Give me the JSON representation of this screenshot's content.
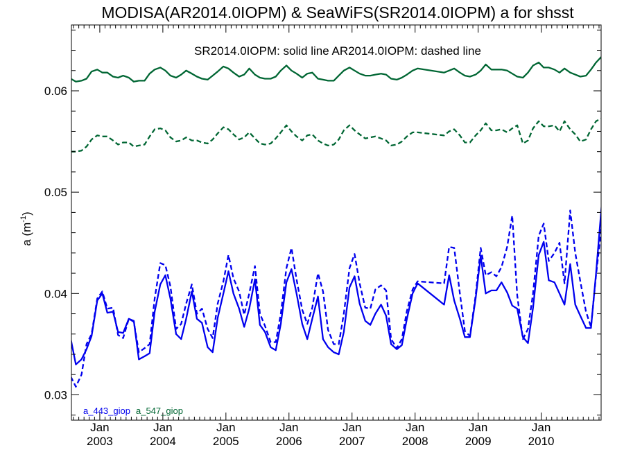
{
  "chart_data": {
    "type": "line",
    "title": "MODISA(AR2014.0IOPM) & SeaWiFS(SR2014.0IOPM)  a for shsst",
    "subtitle": "SR2014.0IOPM: solid line   AR2014.0IOPM: dashed line",
    "ylabel_main": "a (m",
    "ylabel_sup": "-1",
    "ylabel_close": ")",
    "xlim": [
      2002.55,
      2010.95
    ],
    "ylim": [
      0.0275,
      0.0665
    ],
    "y_ticks": [
      0.03,
      0.04,
      0.05,
      0.06
    ],
    "y_tick_labels": [
      "0.03",
      "0.04",
      "0.05",
      "0.06"
    ],
    "x_ticks": [
      2003.0,
      2004.0,
      2005.0,
      2006.0,
      2007.0,
      2008.0,
      2009.0,
      2010.0
    ],
    "x_tick_labels_top": [
      "Jan",
      "Jan",
      "Jan",
      "Jan",
      "Jan",
      "Jan",
      "Jan",
      "Jan"
    ],
    "x_tick_labels_bottom": [
      "2003",
      "2004",
      "2005",
      "2006",
      "2007",
      "2008",
      "2009",
      "2010"
    ],
    "legend": [
      {
        "name": "a_443_giop",
        "color": "#0000ee"
      },
      {
        "name": "a_547_giop",
        "color": "#006633"
      }
    ],
    "series": [
      {
        "legend_index": 1,
        "style": "solid",
        "color": "#006633",
        "x": [
          2002.54,
          2002.62,
          2002.71,
          2002.79,
          2002.87,
          2002.96,
          2003.04,
          2003.12,
          2003.21,
          2003.29,
          2003.37,
          2003.46,
          2003.54,
          2003.62,
          2003.71,
          2003.79,
          2003.87,
          2003.96,
          2004.04,
          2004.12,
          2004.21,
          2004.29,
          2004.37,
          2004.46,
          2004.54,
          2004.62,
          2004.71,
          2004.79,
          2004.87,
          2004.96,
          2005.04,
          2005.12,
          2005.21,
          2005.29,
          2005.37,
          2005.46,
          2005.54,
          2005.62,
          2005.71,
          2005.79,
          2005.87,
          2005.96,
          2006.04,
          2006.12,
          2006.21,
          2006.29,
          2006.37,
          2006.46,
          2006.54,
          2006.62,
          2006.71,
          2006.79,
          2006.87,
          2006.96,
          2007.04,
          2007.12,
          2007.21,
          2007.29,
          2007.37,
          2007.46,
          2007.54,
          2007.62,
          2007.71,
          2007.79,
          2007.87,
          2007.96,
          2008.04,
          2008.46,
          2008.54,
          2008.62,
          2008.71,
          2008.79,
          2008.87,
          2008.96,
          2009.04,
          2009.12,
          2009.21,
          2009.29,
          2009.37,
          2009.46,
          2009.54,
          2009.62,
          2009.71,
          2009.79,
          2009.87,
          2009.96,
          2010.04,
          2010.12,
          2010.21,
          2010.29,
          2010.37,
          2010.46,
          2010.54,
          2010.62,
          2010.71,
          2010.79,
          2010.87,
          2010.96
        ],
        "y": [
          0.0612,
          0.0609,
          0.061,
          0.0612,
          0.0619,
          0.0621,
          0.0618,
          0.0618,
          0.0614,
          0.0613,
          0.0615,
          0.0613,
          0.0609,
          0.061,
          0.061,
          0.0617,
          0.0621,
          0.0623,
          0.062,
          0.0615,
          0.0613,
          0.0616,
          0.062,
          0.0617,
          0.0614,
          0.0612,
          0.0611,
          0.0615,
          0.0619,
          0.0624,
          0.0622,
          0.0618,
          0.0614,
          0.0616,
          0.0622,
          0.0616,
          0.0613,
          0.0612,
          0.0612,
          0.0614,
          0.062,
          0.0625,
          0.062,
          0.0617,
          0.0613,
          0.0617,
          0.0618,
          0.0612,
          0.0611,
          0.061,
          0.061,
          0.0615,
          0.062,
          0.0623,
          0.062,
          0.0617,
          0.0615,
          0.0615,
          0.0616,
          0.0617,
          0.0616,
          0.0612,
          0.0611,
          0.0613,
          0.0616,
          0.062,
          0.0622,
          0.0618,
          0.062,
          0.0622,
          0.0618,
          0.0615,
          0.0614,
          0.0616,
          0.062,
          0.0626,
          0.0621,
          0.0621,
          0.0621,
          0.062,
          0.0617,
          0.0614,
          0.0613,
          0.0618,
          0.0625,
          0.0628,
          0.0623,
          0.0623,
          0.0621,
          0.0618,
          0.0622,
          0.0618,
          0.0616,
          0.0614,
          0.0615,
          0.0621,
          0.0628,
          0.0634
        ]
      },
      {
        "legend_index": 1,
        "style": "dashed",
        "color": "#006633",
        "x": [
          2002.54,
          2002.62,
          2002.71,
          2002.79,
          2002.87,
          2002.96,
          2003.04,
          2003.12,
          2003.21,
          2003.29,
          2003.37,
          2003.46,
          2003.54,
          2003.62,
          2003.71,
          2003.79,
          2003.87,
          2003.96,
          2004.04,
          2004.12,
          2004.21,
          2004.29,
          2004.37,
          2004.46,
          2004.54,
          2004.62,
          2004.71,
          2004.79,
          2004.87,
          2004.96,
          2005.04,
          2005.12,
          2005.21,
          2005.29,
          2005.37,
          2005.46,
          2005.54,
          2005.62,
          2005.71,
          2005.79,
          2005.87,
          2005.96,
          2006.04,
          2006.12,
          2006.21,
          2006.29,
          2006.37,
          2006.46,
          2006.54,
          2006.62,
          2006.71,
          2006.79,
          2006.87,
          2006.96,
          2007.04,
          2007.12,
          2007.21,
          2007.29,
          2007.37,
          2007.46,
          2007.54,
          2007.62,
          2007.71,
          2007.79,
          2007.87,
          2007.96,
          2008.04,
          2008.46,
          2008.54,
          2008.62,
          2008.71,
          2008.79,
          2008.87,
          2008.96,
          2009.04,
          2009.12,
          2009.21,
          2009.29,
          2009.37,
          2009.46,
          2009.54,
          2009.62,
          2009.71,
          2009.79,
          2009.87,
          2009.96,
          2010.04,
          2010.12,
          2010.21,
          2010.29,
          2010.37,
          2010.46,
          2010.54,
          2010.62,
          2010.71,
          2010.79,
          2010.87,
          2010.96
        ],
        "y": [
          0.054,
          0.054,
          0.0541,
          0.0545,
          0.0552,
          0.0556,
          0.0555,
          0.0555,
          0.0551,
          0.0547,
          0.0549,
          0.0549,
          0.0545,
          0.0546,
          0.0547,
          0.0555,
          0.0562,
          0.0563,
          0.0561,
          0.0554,
          0.055,
          0.0551,
          0.0554,
          0.0551,
          0.0551,
          0.0549,
          0.0548,
          0.0552,
          0.0558,
          0.0564,
          0.0562,
          0.0557,
          0.0552,
          0.0554,
          0.0559,
          0.0553,
          0.0548,
          0.0547,
          0.0548,
          0.0553,
          0.0559,
          0.0566,
          0.056,
          0.0555,
          0.0551,
          0.0556,
          0.0557,
          0.0551,
          0.0548,
          0.0546,
          0.0547,
          0.0552,
          0.0561,
          0.0566,
          0.0561,
          0.0557,
          0.0553,
          0.0554,
          0.0555,
          0.0553,
          0.0551,
          0.0546,
          0.0547,
          0.055,
          0.0555,
          0.0559,
          0.0559,
          0.0556,
          0.056,
          0.0562,
          0.0556,
          0.0549,
          0.0549,
          0.0556,
          0.0561,
          0.0568,
          0.0561,
          0.0561,
          0.0562,
          0.0559,
          0.0563,
          0.0566,
          0.0548,
          0.0551,
          0.0563,
          0.057,
          0.0565,
          0.0565,
          0.0566,
          0.056,
          0.057,
          0.0562,
          0.0557,
          0.055,
          0.0552,
          0.0562,
          0.057,
          0.0573
        ]
      },
      {
        "legend_index": 0,
        "style": "solid",
        "color": "#0000ee",
        "x": [
          2002.54,
          2002.62,
          2002.71,
          2002.79,
          2002.87,
          2002.96,
          2003.04,
          2003.12,
          2003.21,
          2003.29,
          2003.37,
          2003.46,
          2003.54,
          2003.62,
          2003.71,
          2003.79,
          2003.87,
          2003.96,
          2004.04,
          2004.12,
          2004.21,
          2004.29,
          2004.37,
          2004.46,
          2004.54,
          2004.62,
          2004.71,
          2004.79,
          2004.87,
          2004.96,
          2005.04,
          2005.12,
          2005.21,
          2005.29,
          2005.37,
          2005.46,
          2005.54,
          2005.62,
          2005.71,
          2005.79,
          2005.87,
          2005.96,
          2006.04,
          2006.12,
          2006.21,
          2006.29,
          2006.37,
          2006.46,
          2006.54,
          2006.62,
          2006.71,
          2006.79,
          2006.87,
          2006.96,
          2007.04,
          2007.12,
          2007.21,
          2007.29,
          2007.37,
          2007.46,
          2007.54,
          2007.62,
          2007.71,
          2007.79,
          2007.87,
          2007.96,
          2008.04,
          2008.46,
          2008.54,
          2008.62,
          2008.71,
          2008.79,
          2008.87,
          2008.96,
          2009.04,
          2009.12,
          2009.21,
          2009.29,
          2009.37,
          2009.46,
          2009.54,
          2009.62,
          2009.71,
          2009.79,
          2009.87,
          2009.96,
          2010.04,
          2010.12,
          2010.21,
          2010.29,
          2010.37,
          2010.46,
          2010.54,
          2010.62,
          2010.71,
          2010.79,
          2010.87,
          2010.96
        ],
        "y": [
          0.0355,
          0.033,
          0.0335,
          0.0345,
          0.0358,
          0.0393,
          0.04,
          0.0381,
          0.0382,
          0.0362,
          0.0361,
          0.0375,
          0.0373,
          0.0335,
          0.0338,
          0.0341,
          0.0382,
          0.0409,
          0.0418,
          0.0395,
          0.036,
          0.0355,
          0.0375,
          0.0402,
          0.0375,
          0.0371,
          0.0347,
          0.0342,
          0.0376,
          0.04,
          0.0422,
          0.04,
          0.0385,
          0.0367,
          0.0385,
          0.0414,
          0.0369,
          0.0362,
          0.0347,
          0.0344,
          0.037,
          0.0411,
          0.0424,
          0.04,
          0.037,
          0.0355,
          0.0375,
          0.0397,
          0.0355,
          0.0347,
          0.0342,
          0.034,
          0.0362,
          0.0406,
          0.0417,
          0.039,
          0.0373,
          0.0369,
          0.038,
          0.0389,
          0.0378,
          0.035,
          0.0345,
          0.0349,
          0.0375,
          0.04,
          0.041,
          0.0389,
          0.0418,
          0.0393,
          0.0375,
          0.0357,
          0.0357,
          0.0395,
          0.0437,
          0.04,
          0.0403,
          0.0403,
          0.0411,
          0.0401,
          0.0388,
          0.0385,
          0.0357,
          0.0351,
          0.0386,
          0.0438,
          0.0451,
          0.0413,
          0.0411,
          0.04,
          0.0389,
          0.0429,
          0.0389,
          0.0378,
          0.0366,
          0.0366,
          0.042,
          0.0488
        ]
      },
      {
        "legend_index": 0,
        "style": "dashed",
        "color": "#0000ee",
        "x": [
          2002.54,
          2002.62,
          2002.71,
          2002.79,
          2002.87,
          2002.96,
          2003.04,
          2003.12,
          2003.21,
          2003.29,
          2003.37,
          2003.46,
          2003.54,
          2003.62,
          2003.71,
          2003.79,
          2003.87,
          2003.96,
          2004.04,
          2004.12,
          2004.21,
          2004.29,
          2004.37,
          2004.46,
          2004.54,
          2004.62,
          2004.71,
          2004.79,
          2004.87,
          2004.96,
          2005.04,
          2005.12,
          2005.21,
          2005.29,
          2005.37,
          2005.46,
          2005.54,
          2005.62,
          2005.71,
          2005.79,
          2005.87,
          2005.96,
          2006.04,
          2006.12,
          2006.21,
          2006.29,
          2006.37,
          2006.46,
          2006.54,
          2006.62,
          2006.71,
          2006.79,
          2006.87,
          2006.96,
          2007.04,
          2007.12,
          2007.21,
          2007.29,
          2007.37,
          2007.46,
          2007.54,
          2007.62,
          2007.71,
          2007.79,
          2007.87,
          2007.96,
          2008.04,
          2008.46,
          2008.54,
          2008.62,
          2008.71,
          2008.79,
          2008.87,
          2008.96,
          2009.04,
          2009.12,
          2009.21,
          2009.29,
          2009.37,
          2009.46,
          2009.54,
          2009.62,
          2009.71,
          2009.79,
          2009.87,
          2009.96,
          2010.04,
          2010.12,
          2010.21,
          2010.29,
          2010.37,
          2010.46,
          2010.54,
          2010.62,
          2010.71,
          2010.79,
          2010.87,
          2010.96
        ],
        "y": [
          0.0318,
          0.0308,
          0.032,
          0.035,
          0.036,
          0.0395,
          0.0402,
          0.0385,
          0.0386,
          0.0359,
          0.0356,
          0.0375,
          0.0372,
          0.0342,
          0.0346,
          0.035,
          0.0395,
          0.043,
          0.0428,
          0.0407,
          0.0365,
          0.037,
          0.039,
          0.0409,
          0.038,
          0.0385,
          0.0365,
          0.0356,
          0.039,
          0.0412,
          0.0438,
          0.0415,
          0.0402,
          0.0379,
          0.04,
          0.0427,
          0.038,
          0.0368,
          0.0352,
          0.0352,
          0.038,
          0.0425,
          0.0445,
          0.0414,
          0.0384,
          0.037,
          0.0386,
          0.042,
          0.0402,
          0.0364,
          0.035,
          0.035,
          0.038,
          0.0425,
          0.0439,
          0.041,
          0.0386,
          0.0385,
          0.0404,
          0.0408,
          0.0403,
          0.0355,
          0.0346,
          0.0355,
          0.0383,
          0.0404,
          0.0412,
          0.041,
          0.0446,
          0.0445,
          0.04,
          0.0363,
          0.0358,
          0.0398,
          0.0445,
          0.0418,
          0.0421,
          0.0417,
          0.0426,
          0.0446,
          0.0477,
          0.0398,
          0.0355,
          0.0365,
          0.04,
          0.0457,
          0.0469,
          0.0432,
          0.044,
          0.045,
          0.041,
          0.0482,
          0.044,
          0.0412,
          0.0382,
          0.0367,
          0.0418,
          0.0468
        ]
      }
    ]
  }
}
